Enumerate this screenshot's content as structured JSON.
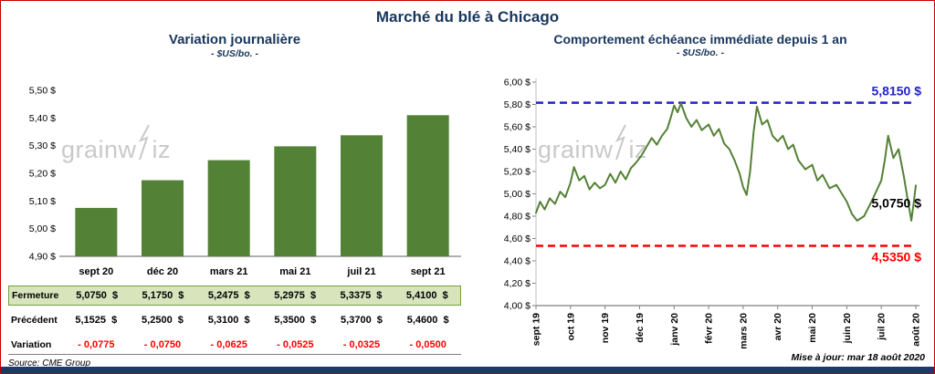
{
  "page": {
    "title": "Marché du blé à Chicago",
    "source": "Source: CME Group",
    "updated": "Mise à jour: mar 18 août 2020",
    "watermark": {
      "part1": "grainw",
      "part2": "iz"
    }
  },
  "colors": {
    "navy": "#17365d",
    "green": "#538135",
    "green_row_bg": "#d7e4bc",
    "green_row_border": "#6fa33b",
    "red": "#ff0000",
    "blue": "#2323c9",
    "border_red": "#c00000",
    "watermark_gray": "#c9c9c9"
  },
  "chart_data": [
    {
      "type": "bar",
      "title": "Variation journalière",
      "subtitle": "- $US/bo. -",
      "categories": [
        "sept 20",
        "déc 20",
        "mars 21",
        "mai 21",
        "juil 21",
        "sept 21"
      ],
      "values": [
        5.075,
        5.175,
        5.2475,
        5.2975,
        5.3375,
        5.41
      ],
      "ylim": [
        4.9,
        5.5
      ],
      "ytick_step": 0.1,
      "ytick_labels": [
        "4,90 $",
        "5,00 $",
        "5,10 $",
        "5,20 $",
        "5,30 $",
        "5,40 $",
        "5,50 $"
      ],
      "bar_color": "#538135",
      "grid": false,
      "table": {
        "rows": [
          {
            "label": "Fermeture",
            "style": "highlight",
            "values": [
              "5,0750  $",
              "5,1750  $",
              "5,2475  $",
              "5,2975  $",
              "5,3375  $",
              "5,4100  $"
            ]
          },
          {
            "label": "Précédent",
            "style": "normal",
            "values": [
              "5,1525  $",
              "5,2500  $",
              "5,3100  $",
              "5,3500  $",
              "5,3700  $",
              "5,4600  $"
            ]
          },
          {
            "label": "Variation",
            "style": "negative",
            "values": [
              "- 0,0775",
              "- 0,0750",
              "- 0,0625",
              "- 0,0525",
              "- 0,0325",
              "- 0,0500"
            ]
          }
        ]
      }
    },
    {
      "type": "line",
      "title": "Comportement échéance immédiate depuis 1 an",
      "subtitle": "- $US/bo. -",
      "x_labels": [
        "sept 19",
        "oct 19",
        "nov 19",
        "déc 19",
        "janv 20",
        "févr 20",
        "mars 20",
        "avr 20",
        "mai 20",
        "juin 20",
        "juil 20",
        "août 20"
      ],
      "ylim": [
        4.0,
        6.0
      ],
      "ytick_step": 0.2,
      "ytick_labels": [
        "4,00 $",
        "4,20 $",
        "4,40 $",
        "4,60 $",
        "4,80 $",
        "5,00 $",
        "5,20 $",
        "5,40 $",
        "5,60 $",
        "5,80 $",
        "6,00 $"
      ],
      "grid": false,
      "hlines": [
        {
          "value": 5.815,
          "label": "5,8150 $",
          "color": "#2323c9",
          "style": "dashed"
        },
        {
          "value": 4.535,
          "label": "4,5350 $",
          "color": "#ff0000",
          "style": "dashed"
        }
      ],
      "last_label": {
        "value": 5.075,
        "label": "5,0750 $",
        "color": "#000000"
      },
      "series": [
        {
          "name": "échéance immédiate",
          "color": "#538135",
          "points": [
            [
              0,
              4.83
            ],
            [
              0.12,
              4.93
            ],
            [
              0.25,
              4.86
            ],
            [
              0.4,
              4.96
            ],
            [
              0.55,
              4.91
            ],
            [
              0.7,
              5.02
            ],
            [
              0.85,
              4.97
            ],
            [
              1,
              5.1
            ],
            [
              1.1,
              5.24
            ],
            [
              1.25,
              5.12
            ],
            [
              1.4,
              5.16
            ],
            [
              1.55,
              5.04
            ],
            [
              1.7,
              5.1
            ],
            [
              1.85,
              5.05
            ],
            [
              2,
              5.08
            ],
            [
              2.15,
              5.18
            ],
            [
              2.3,
              5.1
            ],
            [
              2.45,
              5.2
            ],
            [
              2.6,
              5.13
            ],
            [
              2.75,
              5.23
            ],
            [
              2.9,
              5.28
            ],
            [
              3.05,
              5.34
            ],
            [
              3.2,
              5.42
            ],
            [
              3.35,
              5.5
            ],
            [
              3.5,
              5.44
            ],
            [
              3.65,
              5.52
            ],
            [
              3.8,
              5.58
            ],
            [
              3.9,
              5.68
            ],
            [
              4,
              5.79
            ],
            [
              4.1,
              5.73
            ],
            [
              4.2,
              5.81
            ],
            [
              4.35,
              5.68
            ],
            [
              4.5,
              5.6
            ],
            [
              4.65,
              5.66
            ],
            [
              4.8,
              5.57
            ],
            [
              5,
              5.62
            ],
            [
              5.15,
              5.52
            ],
            [
              5.3,
              5.58
            ],
            [
              5.45,
              5.45
            ],
            [
              5.6,
              5.4
            ],
            [
              5.75,
              5.3
            ],
            [
              5.9,
              5.18
            ],
            [
              6,
              5.06
            ],
            [
              6.1,
              4.99
            ],
            [
              6.2,
              5.2
            ],
            [
              6.3,
              5.55
            ],
            [
              6.4,
              5.78
            ],
            [
              6.55,
              5.62
            ],
            [
              6.7,
              5.66
            ],
            [
              6.85,
              5.52
            ],
            [
              7,
              5.47
            ],
            [
              7.15,
              5.52
            ],
            [
              7.3,
              5.4
            ],
            [
              7.45,
              5.44
            ],
            [
              7.6,
              5.3
            ],
            [
              7.8,
              5.22
            ],
            [
              8,
              5.26
            ],
            [
              8.15,
              5.12
            ],
            [
              8.3,
              5.17
            ],
            [
              8.5,
              5.05
            ],
            [
              8.7,
              5.08
            ],
            [
              8.9,
              4.98
            ],
            [
              9,
              4.93
            ],
            [
              9.15,
              4.82
            ],
            [
              9.3,
              4.76
            ],
            [
              9.5,
              4.8
            ],
            [
              9.7,
              4.92
            ],
            [
              9.85,
              5.02
            ],
            [
              10,
              5.12
            ],
            [
              10.1,
              5.3
            ],
            [
              10.2,
              5.52
            ],
            [
              10.35,
              5.32
            ],
            [
              10.5,
              5.4
            ],
            [
              10.65,
              5.16
            ],
            [
              10.78,
              4.92
            ],
            [
              10.87,
              4.76
            ],
            [
              10.94,
              4.92
            ],
            [
              11,
              5.075
            ]
          ]
        }
      ]
    }
  ]
}
